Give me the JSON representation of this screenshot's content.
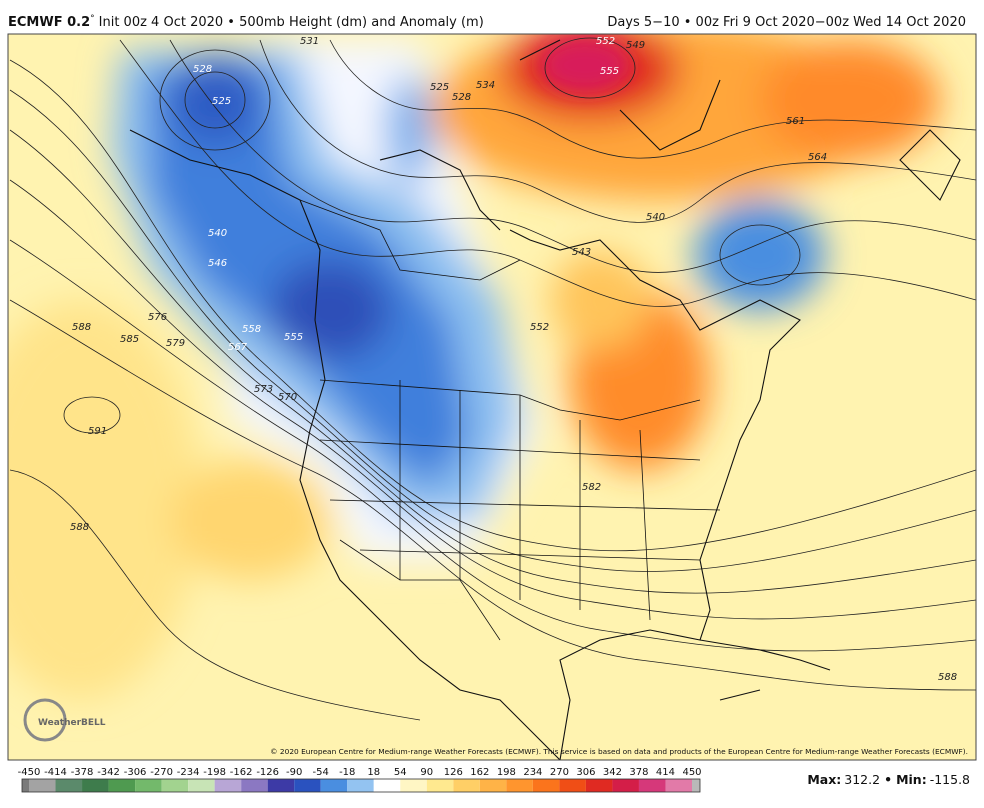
{
  "header": {
    "model": "ECMWF 0.2",
    "degree": "°",
    "init": "Init 00z 4 Oct 2020 • 500mb Height (dm) and Anomaly (m)",
    "period": "Days 5−10 • 00z Fri 9 Oct 2020−00z Wed 14 Oct 2020"
  },
  "map": {
    "contour_labels": [
      "531",
      "528",
      "525",
      "525",
      "528",
      "534",
      "552",
      "549",
      "555",
      "561",
      "564",
      "540",
      "543",
      "540",
      "546",
      "552",
      "558",
      "555",
      "567",
      "576",
      "579",
      "588",
      "585",
      "591",
      "573",
      "570",
      "582",
      "588",
      "588"
    ],
    "copyright": "© 2020 European Centre for Medium-range Weather Forecasts (ECMWF). This service is based on data and products of the European Centre for Medium-range Weather Forecasts (ECMWF).",
    "logo": "WeatherBELL"
  },
  "colorbar": {
    "labels": [
      "-450",
      "-414",
      "-378",
      "-342",
      "-306",
      "-270",
      "-234",
      "-198",
      "-162",
      "-126",
      "-90",
      "-54",
      "-18",
      "18",
      "54",
      "90",
      "126",
      "162",
      "198",
      "234",
      "270",
      "306",
      "342",
      "378",
      "414",
      "450"
    ],
    "colors": [
      "#7a7a7a",
      "#a3a3a3",
      "#5b8a6b",
      "#3e7c4c",
      "#4f9a50",
      "#73b96b",
      "#a2d38f",
      "#c8e4b6",
      "#b8a6d6",
      "#8b78c2",
      "#3d3aa6",
      "#2a52bf",
      "#4a8ee0",
      "#93c3f1",
      "#ffffff",
      "#fff6c4",
      "#ffe98f",
      "#ffcf66",
      "#ffb347",
      "#ff952e",
      "#fb741c",
      "#f04e16",
      "#e02a22",
      "#d41e48",
      "#d6387a",
      "#e27aa8",
      "#b9b9b9"
    ]
  },
  "stats": {
    "max_label": "Max:",
    "max": 312.2,
    "min_label": "Min:",
    "min": -115.8
  }
}
